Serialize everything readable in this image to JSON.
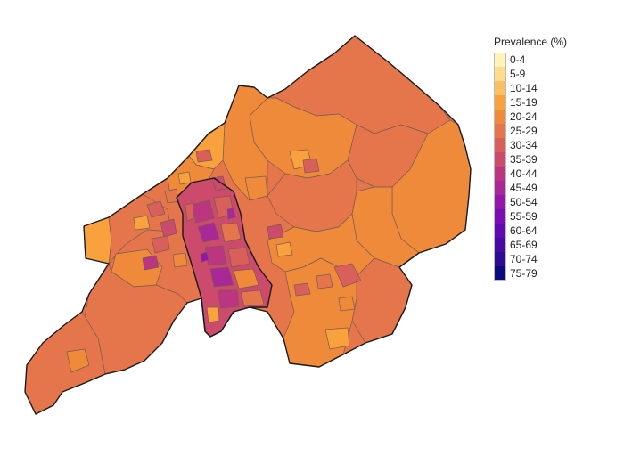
{
  "legend": {
    "title": "Prevalence (%)",
    "items": [
      {
        "label": "0-4",
        "color": "#fff3b8"
      },
      {
        "label": "5-9",
        "color": "#fddc8a"
      },
      {
        "label": "10-14",
        "color": "#fbc062"
      },
      {
        "label": "15-19",
        "color": "#f9a13c"
      },
      {
        "label": "20-24",
        "color": "#f08a3b"
      },
      {
        "label": "25-29",
        "color": "#e5764b"
      },
      {
        "label": "30-34",
        "color": "#d9605a"
      },
      {
        "label": "35-39",
        "color": "#cc4a6b"
      },
      {
        "label": "40-44",
        "color": "#bb3581"
      },
      {
        "label": "45-49",
        "color": "#a92796"
      },
      {
        "label": "50-54",
        "color": "#9417aa"
      },
      {
        "label": "55-59",
        "color": "#7c0cb3"
      },
      {
        "label": "60-64",
        "color": "#6209b0"
      },
      {
        "label": "65-69",
        "color": "#470aa3"
      },
      {
        "label": "70-74",
        "color": "#2d0b92"
      },
      {
        "label": "75-79",
        "color": "#0d0a80"
      }
    ]
  }
}
